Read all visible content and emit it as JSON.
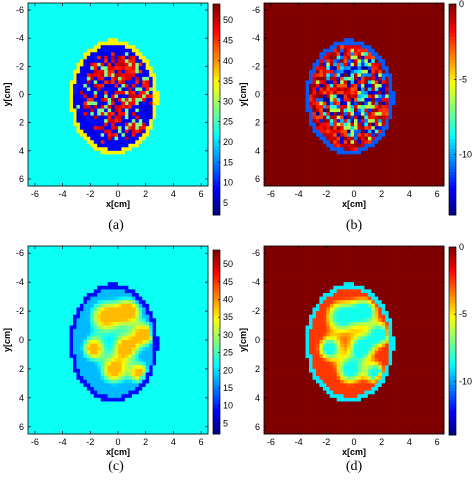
{
  "chart_data": [
    {
      "type": "heatmap",
      "caption": "(a)",
      "xlabel": "x[cm]",
      "ylabel": "y[cm]",
      "xlim": [
        -6.5,
        6.5
      ],
      "ylim": [
        6.5,
        -6.5
      ],
      "x_ticks": [
        -6,
        -4,
        -2,
        0,
        2,
        4,
        6
      ],
      "y_ticks": [
        -6,
        -4,
        -2,
        0,
        2,
        4,
        6
      ],
      "colorbar": {
        "ticks": [
          50,
          45,
          40,
          35,
          30,
          25,
          20,
          15,
          10,
          5
        ],
        "range": [
          2,
          54
        ]
      },
      "image": {
        "shape": "ellipse",
        "center": [
          -0.3,
          0.2
        ],
        "radii": [
          3.2,
          4.1
        ],
        "background_value": 22,
        "rim_value": 35,
        "interior_value": 8,
        "inclusion_value": 48,
        "inclusion_pattern": "speckled",
        "smooth": false
      }
    },
    {
      "type": "heatmap",
      "caption": "(b)",
      "xlabel": "x[cm]",
      "ylabel": "y[cm]",
      "xlim": [
        -6.5,
        6.5
      ],
      "ylim": [
        6.5,
        -6.5
      ],
      "x_ticks": [
        -6,
        -4,
        -2,
        0,
        2,
        4,
        6
      ],
      "y_ticks": [
        -6,
        -4,
        -2,
        0,
        2,
        4,
        6
      ],
      "colorbar": {
        "ticks": [
          0,
          -5,
          -10
        ],
        "range": [
          -14,
          0
        ]
      },
      "image": {
        "shape": "ellipse",
        "center": [
          -0.3,
          0.2
        ],
        "radii": [
          3.2,
          4.1
        ],
        "background_value": 0,
        "rim_value": -11,
        "interior_value": -1.5,
        "inclusion_value": -11,
        "inclusion_pattern": "speckled",
        "smooth": false
      }
    },
    {
      "type": "heatmap",
      "caption": "(c)",
      "xlabel": "x[cm]",
      "ylabel": "y[cm]",
      "xlim": [
        -6.5,
        6.5
      ],
      "ylim": [
        6.5,
        -6.5
      ],
      "x_ticks": [
        -6,
        -4,
        -2,
        0,
        2,
        4,
        6
      ],
      "y_ticks": [
        -6,
        -4,
        -2,
        0,
        2,
        4,
        6
      ],
      "colorbar": {
        "ticks": [
          50,
          45,
          40,
          35,
          30,
          25,
          20,
          15,
          10,
          5
        ],
        "range": [
          2,
          54
        ]
      },
      "image": {
        "shape": "ellipse",
        "center": [
          -0.3,
          0.2
        ],
        "radii": [
          3.2,
          4.1
        ],
        "background_value": 22,
        "rim_value": 9,
        "interior_value": 18,
        "inclusion_value": 38,
        "inclusion_pattern": "smooth",
        "smooth": true
      }
    },
    {
      "type": "heatmap",
      "caption": "(d)",
      "xlabel": "x[cm]",
      "ylabel": "y[cm]",
      "xlim": [
        -6.5,
        6.5
      ],
      "ylim": [
        6.5,
        -6.5
      ],
      "x_ticks": [
        -6,
        -4,
        -2,
        0,
        2,
        4,
        6
      ],
      "y_ticks": [
        -6,
        -4,
        -2,
        0,
        2,
        4,
        6
      ],
      "colorbar": {
        "ticks": [
          0,
          -5,
          -10
        ],
        "range": [
          -14,
          0
        ]
      },
      "image": {
        "shape": "ellipse",
        "center": [
          -0.3,
          0.2
        ],
        "radii": [
          3.2,
          4.1
        ],
        "background_value": 0,
        "rim_value": -9,
        "interior_value": -2.5,
        "inclusion_value": -8.5,
        "inclusion_pattern": "smooth",
        "smooth": true
      }
    }
  ],
  "colors": {
    "colormap": "jet",
    "axis": "#000000"
  }
}
